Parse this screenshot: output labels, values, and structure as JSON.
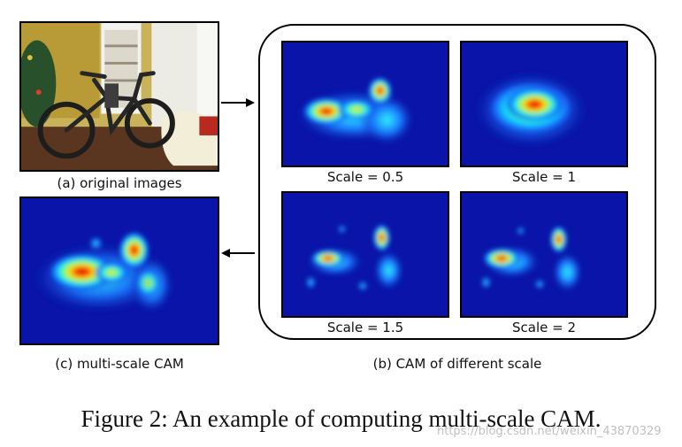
{
  "panels": {
    "original": {
      "label": "(a) original images"
    },
    "multiscale": {
      "label": "(c) multi-scale CAM"
    },
    "group": {
      "label": "(b) CAM of different scale",
      "scales": [
        {
          "label": "Scale = 0.5"
        },
        {
          "label": "Scale = 1"
        },
        {
          "label": "Scale = 1.5"
        },
        {
          "label": "Scale = 2"
        }
      ]
    }
  },
  "figure_caption": "Figure 2: An example of computing multi-scale CAM.",
  "watermark": "https://blog.csdn.net/weixin_43870329",
  "colors": {
    "heatmap_background": "#0a14a8",
    "frame": "#000000"
  }
}
